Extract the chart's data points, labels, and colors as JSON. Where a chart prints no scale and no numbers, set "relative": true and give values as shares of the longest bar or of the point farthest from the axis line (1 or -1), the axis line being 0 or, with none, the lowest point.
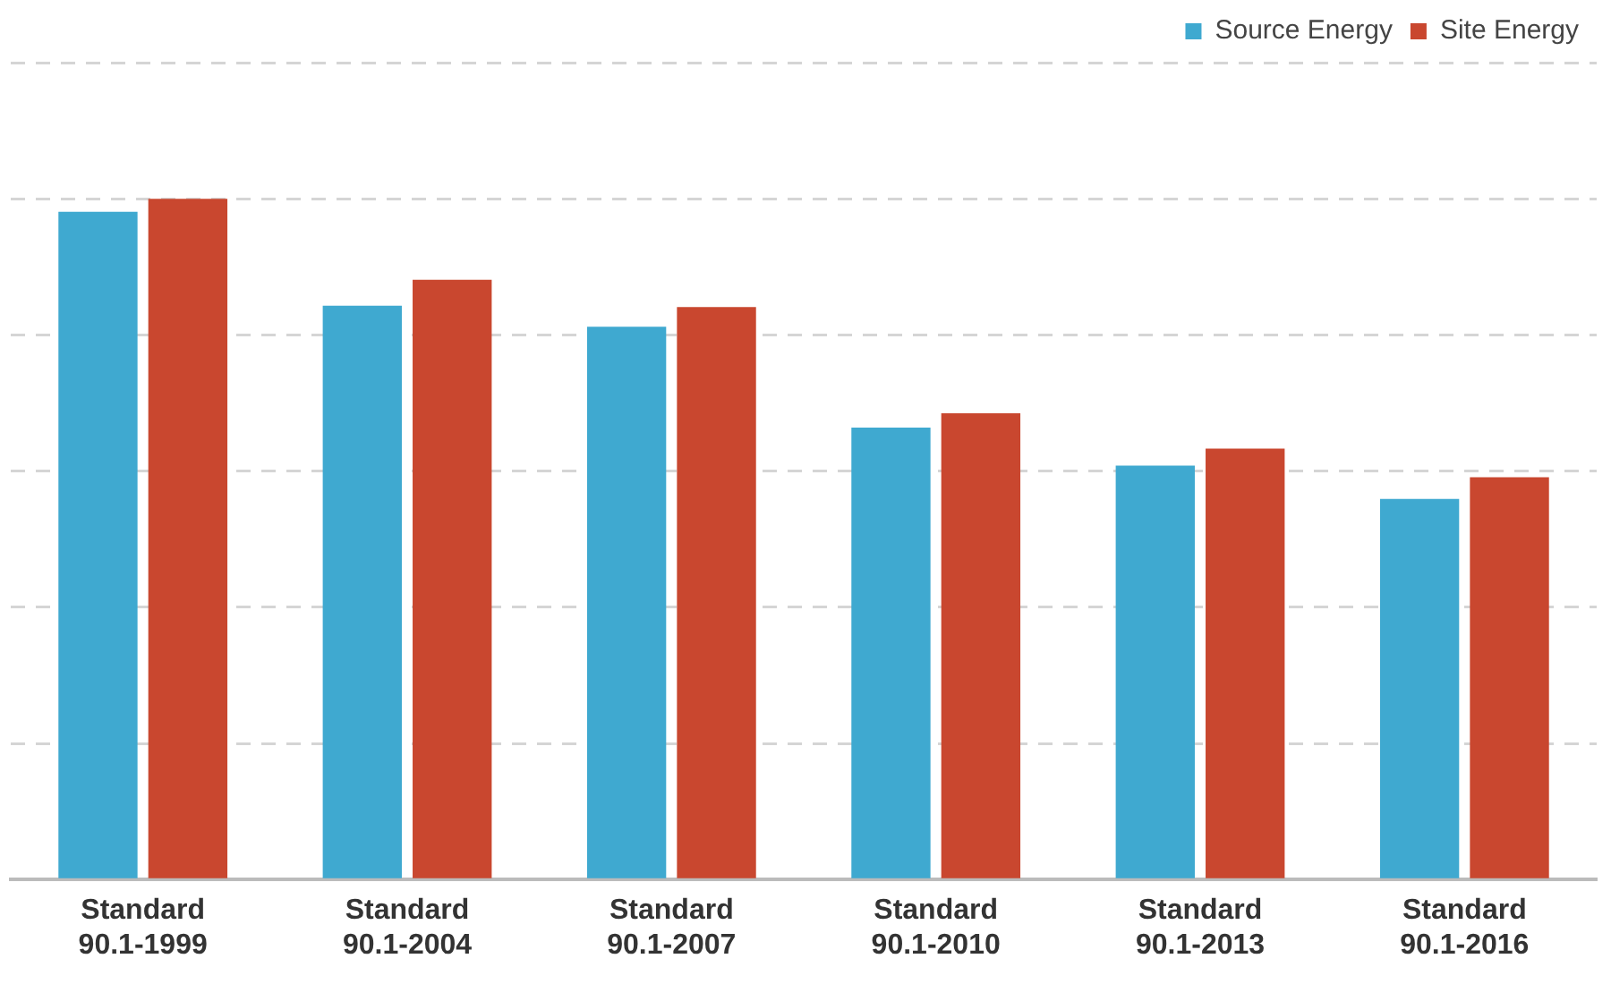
{
  "chart_data": {
    "type": "bar",
    "relative": true,
    "grid": "y",
    "legend": "top right",
    "categories": [
      "Standard 90.1-1999",
      "Standard 90.1-2004",
      "Standard 90.1-2007",
      "Standard 90.1-2010",
      "Standard 90.1-2013",
      "Standard 90.1-2016"
    ],
    "series": [
      {
        "name": "Source Energy",
        "color": "#3fa9d0",
        "values": [
          0.981,
          0.843,
          0.812,
          0.664,
          0.608,
          0.559
        ]
      },
      {
        "name": "Site Energy",
        "color": "#c9472f",
        "values": [
          1,
          0.881,
          0.841,
          0.685,
          0.633,
          0.591
        ]
      }
    ]
  }
}
